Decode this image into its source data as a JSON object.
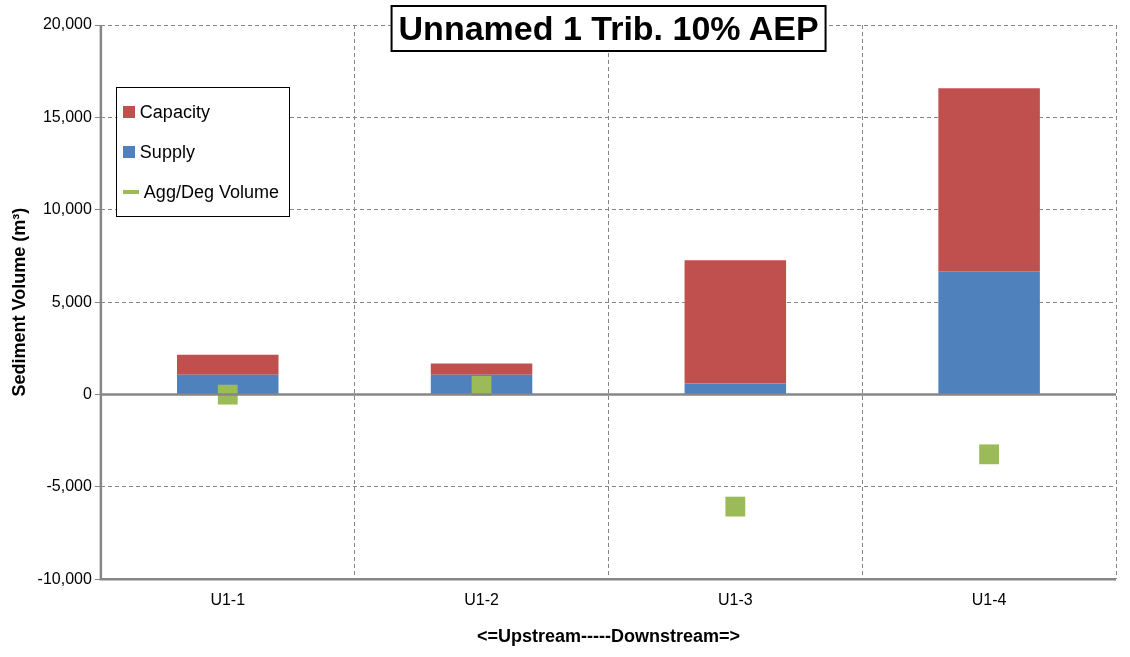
{
  "chart_data": {
    "type": "bar",
    "title": "Unnamed 1 Trib. 10% AEP",
    "xlabel": "<=Upstream-----Downstream=>",
    "ylabel": "Sediment Volume (m³)",
    "categories": [
      "U1-1",
      "U1-2",
      "U1-3",
      "U1-4"
    ],
    "stacked": true,
    "series": [
      {
        "name": "Supply",
        "color": "#4f81bd",
        "values": [
          1070,
          1070,
          600,
          6670
        ]
      },
      {
        "name": "Capacity",
        "color": "#c0504d",
        "values": [
          1080,
          600,
          6670,
          9910
        ]
      },
      {
        "name": "Agg/Deg Volume",
        "type": "scatter",
        "color": "#9bbb59",
        "x": [
          "U1-1",
          "U1-2",
          "U1-3",
          "U1-4"
        ],
        "values": [
          -10,
          470,
          -6070,
          -3240
        ]
      }
    ],
    "ylim": [
      -10000,
      20000
    ],
    "yticks": [
      {
        "value": -10000,
        "label": "-10,000"
      },
      {
        "value": -5000,
        "label": "-5,000"
      },
      0,
      {
        "value": 5000,
        "label": "5,000"
      },
      {
        "value": 10000,
        "label": "10,000"
      },
      {
        "value": 15000,
        "label": "15,000"
      },
      {
        "value": 20000,
        "label": "20,000"
      }
    ],
    "grid": true,
    "legend": "top left",
    "marker": "square"
  }
}
